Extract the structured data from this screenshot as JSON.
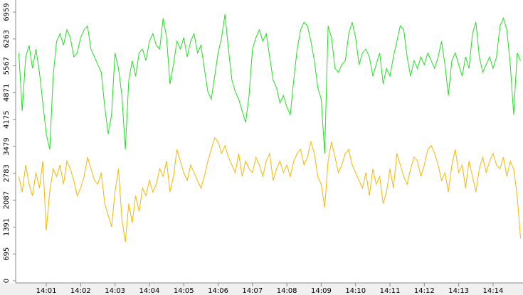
{
  "chart_data": {
    "type": "line",
    "categories": [
      null,
      null,
      null,
      null,
      null,
      null,
      null,
      null,
      "14:01",
      null,
      null,
      null,
      null,
      null,
      null,
      null,
      null,
      null,
      "14:02",
      null,
      null,
      null,
      null,
      null,
      null,
      null,
      null,
      null,
      "14:03",
      null,
      null,
      null,
      null,
      null,
      null,
      null,
      null,
      null,
      "14:04",
      null,
      null,
      null,
      null,
      null,
      null,
      null,
      null,
      null,
      "14:05",
      null,
      null,
      null,
      null,
      null,
      null,
      null,
      null,
      null,
      "14:06",
      null,
      null,
      null,
      null,
      null,
      null,
      null,
      null,
      null,
      "14:07",
      null,
      null,
      null,
      null,
      null,
      null,
      null,
      null,
      null,
      "14:08",
      null,
      null,
      null,
      null,
      null,
      null,
      null,
      null,
      null,
      "14:09",
      null,
      null,
      null,
      null,
      null,
      null,
      null,
      null,
      null,
      "14:10",
      null,
      null,
      null,
      null,
      null,
      null,
      null,
      null,
      null,
      "14:11",
      null,
      null,
      null,
      null,
      null,
      null,
      null,
      null,
      null,
      "14:12",
      null,
      null,
      null,
      null,
      null,
      null,
      null,
      null,
      null,
      "14:13",
      null,
      null,
      null,
      null,
      null,
      null,
      null,
      null,
      null,
      "14:14",
      null,
      null,
      null,
      null,
      null,
      null,
      null,
      null
    ],
    "series": [
      {
        "color": "#22e022",
        "values": [
          5900,
          4400,
          5800,
          6100,
          5500,
          6000,
          5400,
          4600,
          3800,
          3400,
          5300,
          6200,
          6400,
          6100,
          6500,
          6300,
          5800,
          5900,
          6300,
          6500,
          6600,
          6000,
          5800,
          5600,
          5400,
          4500,
          3800,
          4300,
          5900,
          5500,
          4800,
          3400,
          5200,
          5700,
          5300,
          5900,
          6000,
          5700,
          6200,
          6400,
          6100,
          6000,
          6800,
          6300,
          5100,
          5600,
          6200,
          6000,
          6300,
          5800,
          6200,
          6400,
          5900,
          6100,
          5500,
          4900,
          4700,
          5300,
          5900,
          6300,
          6900,
          6000,
          5200,
          4900,
          4700,
          4400,
          4100,
          4800,
          6000,
          6300,
          6500,
          6200,
          6400,
          5800,
          5200,
          5000,
          4600,
          4800,
          4500,
          4300,
          5200,
          6000,
          6500,
          6700,
          6600,
          6200,
          5700,
          5000,
          4700,
          3300,
          6600,
          6300,
          5500,
          5400,
          5600,
          5700,
          6400,
          6700,
          6300,
          5600,
          5900,
          6000,
          5800,
          5300,
          5600,
          5900,
          5100,
          5500,
          5300,
          5800,
          6200,
          6600,
          6500,
          5800,
          5300,
          5700,
          5500,
          5800,
          5600,
          5900,
          5700,
          5500,
          5800,
          6200,
          5600,
          4800,
          5700,
          5900,
          5600,
          5300,
          5800,
          5500,
          6400,
          6700,
          5800,
          5400,
          5600,
          5800,
          5500,
          5800,
          6600,
          6800,
          6500,
          5600,
          4300,
          5900,
          5700
        ]
      },
      {
        "color": "#f5b800",
        "values": [
          2700,
          2300,
          3000,
          2500,
          2200,
          2800,
          2400,
          3100,
          1300,
          2300,
          2900,
          2700,
          3000,
          2500,
          3100,
          2900,
          2600,
          2200,
          2400,
          2700,
          3200,
          2900,
          2600,
          2500,
          2800,
          2000,
          1700,
          1400,
          2300,
          2900,
          1600,
          1000,
          2000,
          1500,
          2200,
          1800,
          2400,
          2200,
          2600,
          2300,
          2500,
          2900,
          2700,
          3100,
          2300,
          2700,
          3400,
          3100,
          2800,
          2600,
          3000,
          2800,
          2600,
          2400,
          2700,
          3100,
          3400,
          3700,
          3600,
          3300,
          3500,
          3200,
          3000,
          2800,
          3300,
          2700,
          3100,
          2900,
          2800,
          3200,
          3000,
          2700,
          3100,
          3300,
          2600,
          2900,
          3100,
          2800,
          3000,
          2700,
          3100,
          3300,
          3400,
          3000,
          3200,
          3600,
          3300,
          2700,
          2500,
          1900,
          3100,
          3600,
          3200,
          2800,
          3000,
          3300,
          3400,
          3000,
          2800,
          2600,
          2400,
          2800,
          2200,
          2900,
          2500,
          2700,
          2000,
          2300,
          2900,
          2400,
          3300,
          3000,
          2700,
          2500,
          2900,
          3200,
          3100,
          2700,
          3000,
          3400,
          3500,
          3300,
          3000,
          2600,
          2800,
          2300,
          3000,
          3400,
          2800,
          3000,
          2400,
          3100,
          2700,
          2300,
          2900,
          3200,
          2800,
          3100,
          3300,
          3000,
          2900,
          3200,
          2700,
          3100,
          2900,
          2200,
          1100
        ]
      }
    ],
    "ylim": [
      0,
      6959
    ],
    "yticks": [
      0,
      695,
      1391,
      2087,
      2783,
      3479,
      4175,
      4871,
      5567,
      6263,
      6959
    ]
  }
}
